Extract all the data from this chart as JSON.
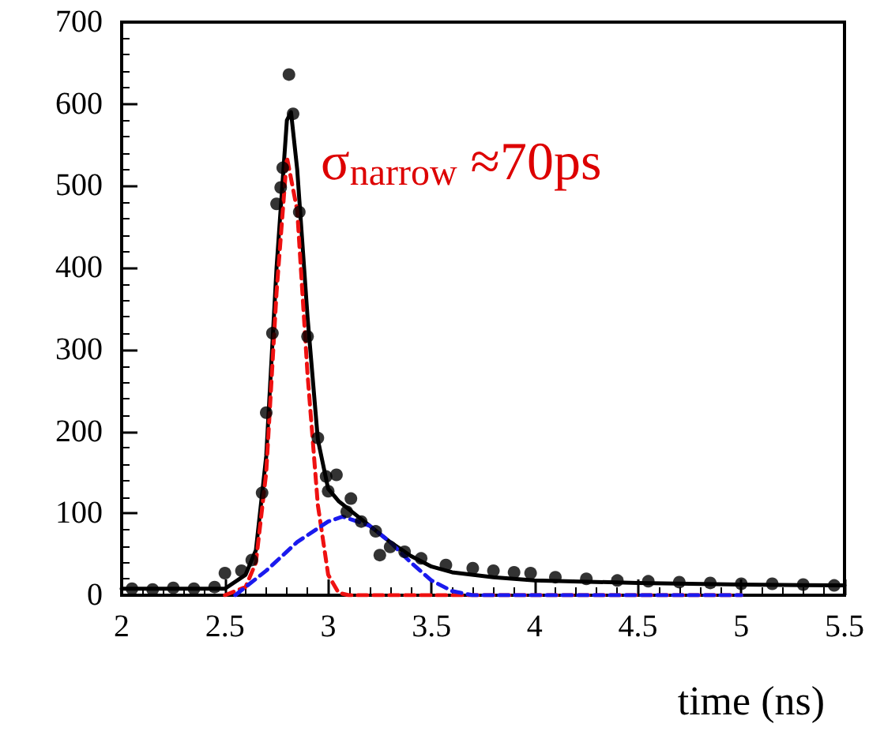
{
  "chart_data": {
    "type": "scatter",
    "xlabel": "time (ns)",
    "xlim": [
      2,
      5.5
    ],
    "xticks": [
      2,
      2.5,
      3,
      3.5,
      4,
      4.5,
      5,
      5.5
    ],
    "ylim": [
      0,
      700
    ],
    "yticks": [
      0,
      100,
      200,
      300,
      400,
      500,
      600,
      700
    ],
    "annotations": [
      "σ$_{narrow}$ ≈70ps"
    ],
    "series": [
      {
        "color": "#000000",
        "marker": "circle",
        "x": [
          2.05,
          2.15,
          2.25,
          2.35,
          2.45,
          2.5,
          2.58,
          2.63,
          2.68,
          2.7,
          2.73,
          2.75,
          2.77,
          2.78,
          2.81,
          2.83,
          2.86,
          2.9,
          2.95,
          2.99,
          3.0,
          3.04,
          3.09,
          3.11,
          3.16,
          3.23,
          3.25,
          3.3,
          3.37,
          3.45,
          3.57,
          3.7,
          3.8,
          3.9,
          3.98,
          4.1,
          4.25,
          4.4,
          4.55,
          4.7,
          4.85,
          5.0,
          5.15,
          5.3,
          5.45
        ],
        "values": [
          8,
          7,
          9,
          8,
          10,
          27,
          30,
          43,
          125,
          223,
          320,
          478,
          498,
          522,
          636,
          588,
          468,
          316,
          192,
          145,
          127,
          147,
          102,
          118,
          90,
          78,
          49,
          59,
          53,
          45,
          37,
          33,
          30,
          28,
          27,
          22,
          20,
          18,
          17,
          16,
          15,
          14,
          14,
          13,
          12
        ]
      },
      {
        "type": "line",
        "color": "#000000",
        "line_style": "solid",
        "x": [
          2,
          2.5,
          2.6,
          2.65,
          2.7,
          2.75,
          2.8,
          2.82,
          2.85,
          2.9,
          2.95,
          3.0,
          3.05,
          3.1,
          3.2,
          3.3,
          3.4,
          3.5,
          3.6,
          3.8,
          4.0,
          4.5,
          5.0,
          5.5
        ],
        "values": [
          8,
          8,
          25,
          55,
          170,
          400,
          580,
          590,
          520,
          340,
          190,
          130,
          115,
          105,
          85,
          65,
          48,
          35,
          28,
          22,
          18,
          15,
          13,
          12
        ]
      },
      {
        "type": "line",
        "color": "#ee1111",
        "line_style": "dashed",
        "x": [
          2.5,
          2.6,
          2.65,
          2.7,
          2.75,
          2.8,
          2.85,
          2.9,
          2.95,
          3.0,
          3.05,
          3.1,
          5.0
        ],
        "values": [
          0,
          10,
          40,
          150,
          370,
          535,
          470,
          270,
          110,
          25,
          3,
          0,
          0
        ]
      },
      {
        "type": "line",
        "color": "#1a1aee",
        "line_style": "dashed",
        "x": [
          2.55,
          2.7,
          2.85,
          3.0,
          3.07,
          3.2,
          3.3,
          3.4,
          3.5,
          3.6,
          3.7,
          5.0
        ],
        "values": [
          0,
          30,
          65,
          90,
          96,
          85,
          65,
          40,
          18,
          5,
          0,
          0
        ]
      }
    ]
  }
}
